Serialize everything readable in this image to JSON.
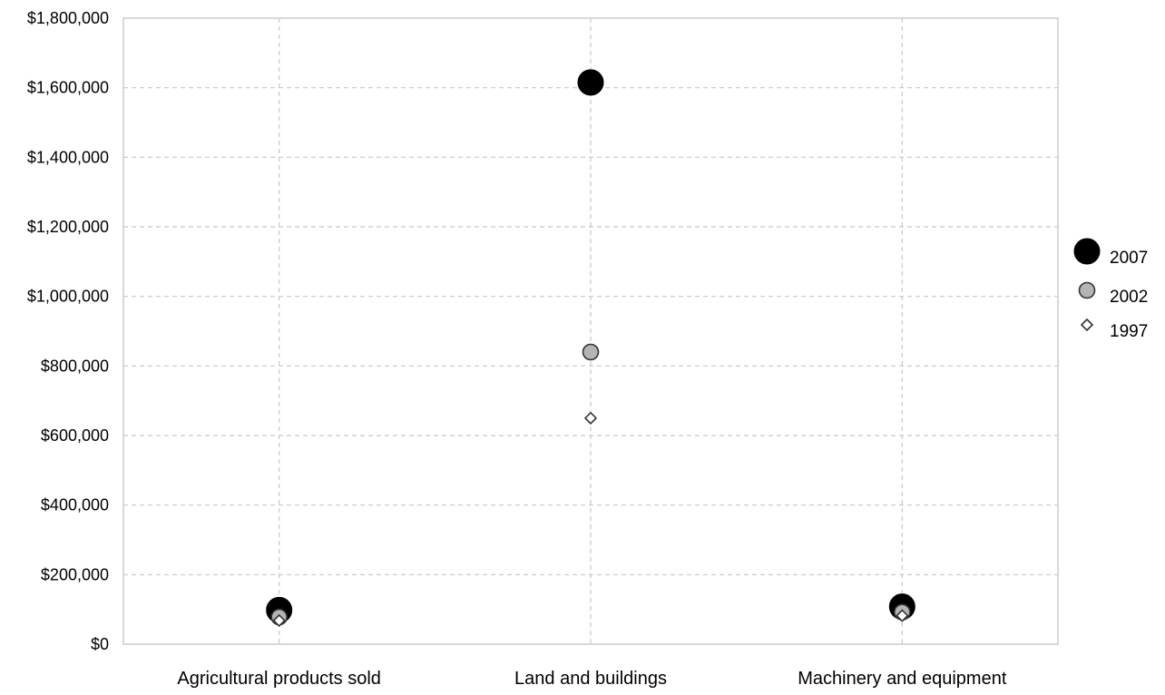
{
  "chart_data": {
    "type": "scatter",
    "title": "",
    "xlabel": "",
    "ylabel": "",
    "categories": [
      "Agricultural products sold",
      "Land and buildings",
      "Machinery and equipment"
    ],
    "ylim": [
      0,
      1800000
    ],
    "yticks": [
      0,
      200000,
      400000,
      600000,
      800000,
      1000000,
      1200000,
      1400000,
      1600000,
      1800000
    ],
    "ytick_labels": [
      "$0",
      "$200,000",
      "$400,000",
      "$600,000",
      "$800,000",
      "$1,000,000",
      "$1,200,000",
      "$1,400,000",
      "$1,600,000",
      "$1,800,000"
    ],
    "grid": true,
    "legend_position": "right",
    "series": [
      {
        "name": "2007",
        "values": [
          98000,
          1615000,
          108000
        ],
        "marker": "large-circle",
        "color": "#000000"
      },
      {
        "name": "2002",
        "values": [
          78000,
          840000,
          92000
        ],
        "marker": "circle",
        "color": "#b4b4b4"
      },
      {
        "name": "1997",
        "values": [
          68000,
          650000,
          82000
        ],
        "marker": "diamond",
        "color": "#ffffff"
      }
    ]
  }
}
